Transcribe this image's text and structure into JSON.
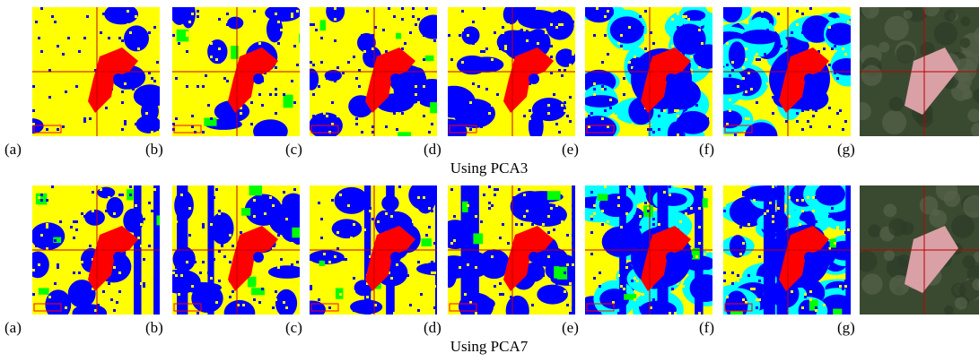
{
  "rows": [
    {
      "labels": [
        "(a)",
        "(b)",
        "(c)",
        "(d)",
        "(e)",
        "(f)",
        "(g)"
      ],
      "caption": "Using PCA3"
    },
    {
      "labels": [
        "(a)",
        "(b)",
        "(c)",
        "(d)",
        "(e)",
        "(f)",
        "(g)"
      ],
      "caption": "Using PCA7"
    }
  ]
}
